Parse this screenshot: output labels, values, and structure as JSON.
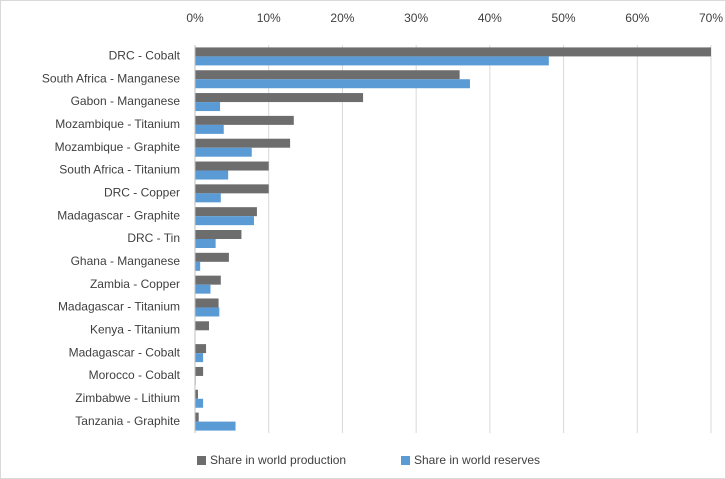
{
  "chart_data": {
    "type": "hbar",
    "categories": [
      "DRC - Cobalt",
      "South Africa - Manganese",
      "Gabon - Manganese",
      "Mozambique - Titanium",
      "Mozambique - Graphite",
      "South Africa - Titanium",
      "DRC - Copper",
      "Madagascar - Graphite",
      "DRC - Tin",
      "Ghana - Manganese",
      "Zambia - Copper",
      "Madagascar - Titanium",
      "Kenya - Titanium",
      "Madagascar - Cobalt",
      "Morocco - Cobalt",
      "Zimbabwe - Lithium",
      "Tanzania - Graphite"
    ],
    "series": [
      {
        "name": "Share in world production",
        "color": "#6d6d6d",
        "values": [
          70,
          35.9,
          22.8,
          13.4,
          12.9,
          10,
          10,
          8.4,
          6.3,
          4.6,
          3.5,
          3.2,
          1.9,
          1.5,
          1.1,
          0.4,
          0.5
        ]
      },
      {
        "name": "Share in world reserves",
        "color": "#5b9bd5",
        "values": [
          48,
          37.3,
          3.4,
          3.9,
          7.7,
          4.5,
          3.5,
          8,
          2.8,
          0.7,
          2.1,
          3.3,
          0,
          1.1,
          0.1,
          1.1,
          5.5
        ]
      }
    ],
    "xlim": [
      0,
      70
    ],
    "xticks": [
      {
        "value": 0,
        "label": "0%"
      },
      {
        "value": 10,
        "label": "10%"
      },
      {
        "value": 20,
        "label": "20%"
      },
      {
        "value": 30,
        "label": "30%"
      },
      {
        "value": 40,
        "label": "40%"
      },
      {
        "value": 50,
        "label": "50%"
      },
      {
        "value": 60,
        "label": "60%"
      },
      {
        "value": 70,
        "label": "70%"
      }
    ],
    "grid": true,
    "legend": "bottom"
  }
}
